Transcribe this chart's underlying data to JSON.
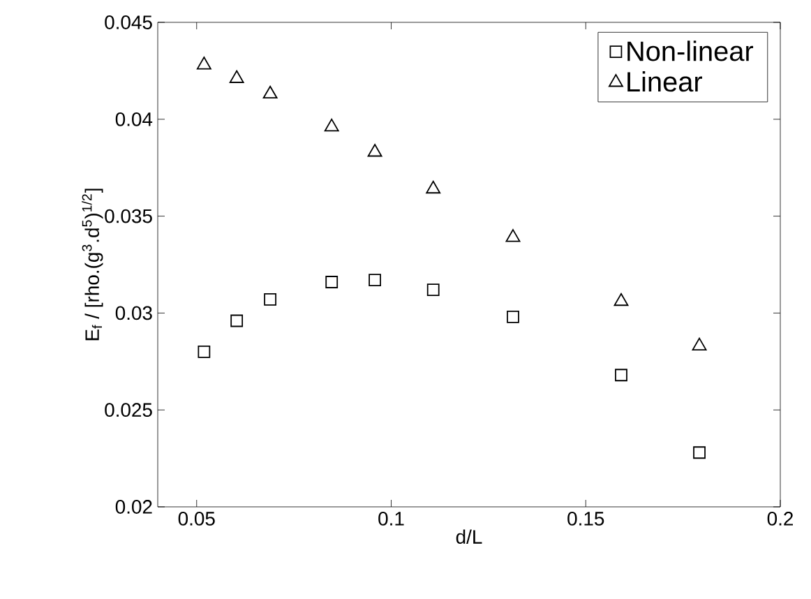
{
  "chart_data": {
    "type": "scatter",
    "xlabel": "d/L",
    "ylabel": "E$_{f}$ / [rho.(g$^{3}$.d$^{5}$)$^{1/2}$]",
    "x": [
      0.0519,
      0.0603,
      0.0689,
      0.0847,
      0.0958,
      0.1108,
      0.1313,
      0.1591,
      0.1792
    ],
    "series": [
      {
        "name": "Non-linear",
        "color": "#000000",
        "marker": "square",
        "values": [
          0.028,
          0.0296,
          0.0307,
          0.0316,
          0.0317,
          0.0312,
          0.0298,
          0.0268,
          0.0228
        ]
      },
      {
        "name": "Linear",
        "color": "#000000",
        "marker": "triangle",
        "values": [
          0.0428,
          0.0421,
          0.0413,
          0.0396,
          0.0383,
          0.0364,
          0.0339,
          0.0306,
          0.0283
        ]
      }
    ],
    "xlim": [
      0.04,
      0.2
    ],
    "xticks": [
      0.05,
      0.1,
      0.15,
      0.2
    ],
    "ylim": [
      0.02,
      0.045
    ],
    "yticks": [
      0.02,
      0.025,
      0.03,
      0.035,
      0.04,
      0.045
    ],
    "legend": "top right",
    "grid": false
  }
}
